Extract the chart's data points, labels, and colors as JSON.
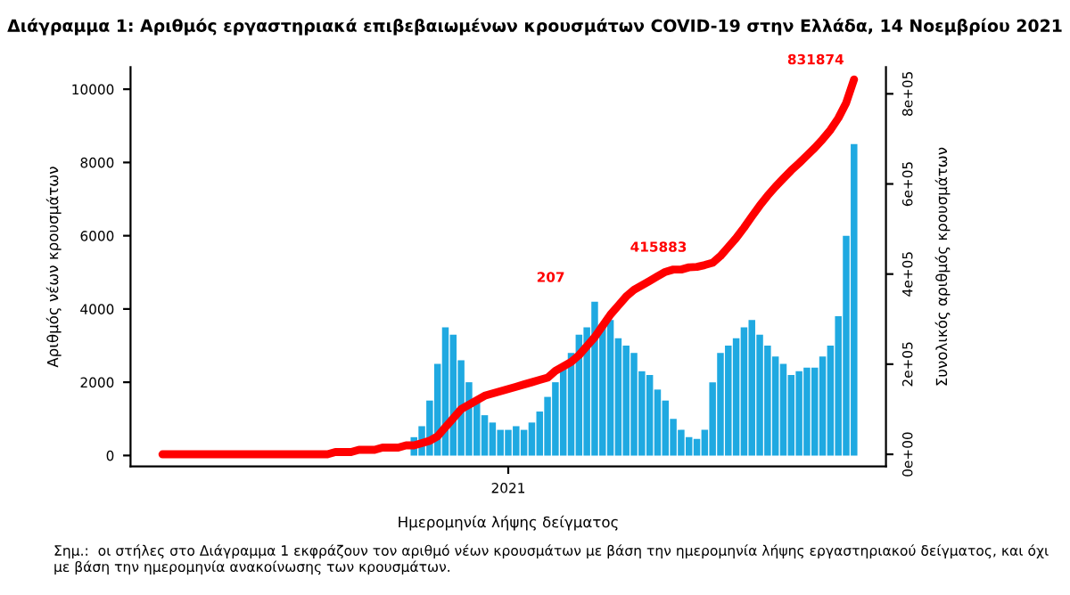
{
  "chart_data": {
    "type": "bar",
    "title": "Διάγραμμα 1: Αριθμός εργαστηριακά επιβεβαιωμένων κρουσμάτων COVID-19 στην Ελλάδα, 14 Νοεμβρίου 2021",
    "xlabel": "Ημερομηνία λήψης δείγματος",
    "ylabel": "Αριθμός νέων κρουσμάτων",
    "y2label": "Συνολικός αριθμός κρουσμάτων",
    "categories": [
      null,
      null,
      null,
      null,
      null,
      null,
      null,
      null,
      null,
      null,
      null,
      null,
      null,
      null,
      null,
      null,
      null,
      null,
      null,
      null,
      null,
      null,
      null,
      null,
      null,
      null,
      null,
      null,
      null,
      null,
      null,
      null,
      null,
      null,
      null,
      null,
      null,
      null,
      null,
      null,
      null,
      null,
      null,
      null,
      "2021",
      null,
      null,
      null,
      null,
      null,
      null,
      null,
      null,
      null,
      null,
      null,
      null,
      null,
      null,
      null,
      null,
      null,
      null,
      null,
      null,
      null,
      null,
      null,
      null,
      null,
      null,
      null,
      null,
      null,
      null,
      null,
      null,
      null,
      null,
      null,
      null,
      null,
      null,
      null,
      null,
      null,
      null,
      null,
      null
    ],
    "series": [
      {
        "color": "#1fa9e1",
        "values": [
          null,
          null,
          null,
          null,
          null,
          null,
          null,
          null,
          null,
          null,
          null,
          null,
          null,
          null,
          null,
          null,
          null,
          null,
          null,
          null,
          null,
          null,
          null,
          null,
          null,
          null,
          null,
          null,
          null,
          null,
          null,
          null,
          500,
          800,
          1500,
          2500,
          3500,
          3300,
          2600,
          2000,
          1500,
          1100,
          900,
          700,
          700,
          800,
          700,
          900,
          1200,
          1600,
          2000,
          2400,
          2800,
          3300,
          3500,
          4200,
          3600,
          3700,
          3200,
          3000,
          2800,
          2300,
          2200,
          1800,
          1500,
          1000,
          700,
          500,
          450,
          700,
          2000,
          2800,
          3000,
          3200,
          3500,
          3700,
          3300,
          3000,
          2700,
          2500,
          2200,
          2300,
          2400,
          2400,
          2700,
          3000,
          3800,
          6000,
          8500
        ]
      },
      {
        "type": "line",
        "axis": "y2",
        "color": "#ff0000",
        "values": [
          0,
          0,
          0,
          0,
          0,
          0,
          0,
          0,
          0,
          0,
          0,
          0,
          0,
          0,
          0,
          0,
          0,
          0,
          0,
          0,
          0,
          0,
          5000,
          5000,
          5000,
          10000,
          10000,
          10000,
          15000,
          15000,
          15000,
          20000,
          20000,
          25000,
          30000,
          40000,
          60000,
          80000,
          100000,
          110000,
          120000,
          130000,
          135000,
          140000,
          145000,
          150000,
          155000,
          160000,
          165000,
          170000,
          185000,
          195000,
          205000,
          220000,
          240000,
          260000,
          285000,
          310000,
          330000,
          350000,
          365000,
          375000,
          385000,
          395000,
          405000,
          410000,
          410000,
          415000,
          415883,
          420000,
          425000,
          440000,
          460000,
          480000,
          503000,
          528000,
          552000,
          574000,
          594000,
          612000,
          630000,
          646000,
          663000,
          680000,
          699000,
          720000,
          746000,
          780000,
          831874
        ],
        "value_labels": [
          null,
          null,
          null,
          null,
          null,
          null,
          null,
          null,
          null,
          null,
          null,
          null,
          null,
          null,
          null,
          null,
          null,
          null,
          null,
          null,
          null,
          null,
          null,
          null,
          null,
          null,
          null,
          null,
          null,
          null,
          null,
          null,
          null,
          null,
          null,
          null,
          null,
          null,
          null,
          null,
          null,
          null,
          null,
          null,
          null,
          null,
          null,
          null,
          null,
          null,
          null,
          null,
          null,
          null,
          null,
          null,
          null,
          null,
          null,
          null,
          null,
          null,
          null,
          null,
          null,
          null,
          null,
          null,
          "415883",
          null,
          null,
          null,
          null,
          null,
          null,
          null,
          null,
          null,
          null,
          null,
          null,
          null,
          null,
          null,
          null,
          null,
          null,
          null,
          "831874"
        ]
      }
    ],
    "ylim": [
      -300,
      10600
    ],
    "yticks": [
      0,
      2000,
      4000,
      6000,
      8000,
      10000
    ],
    "y2lim": [
      -27000,
      859000
    ],
    "y2ticks": [
      {
        "value": 0,
        "label": "0e+00"
      },
      {
        "value": 200000,
        "label": "2e+05"
      },
      {
        "value": 400000,
        "label": "4e+05"
      },
      {
        "value": 600000,
        "label": "6e+05"
      },
      {
        "value": 800000,
        "label": "8e+05"
      }
    ],
    "grid": false,
    "legend": false,
    "annotations": [
      "207",
      "Σημ.:  οι στήλες στο Διάγραμμα 1 εκφράζουν τον αριθμό νέων κρουσμάτων με βάση την ημερομηνία λήψης εργαστηριακού δείγματος, και όχι με βάση την ημερομηνία ανακοίνωσης των κρουσμάτων."
    ]
  }
}
